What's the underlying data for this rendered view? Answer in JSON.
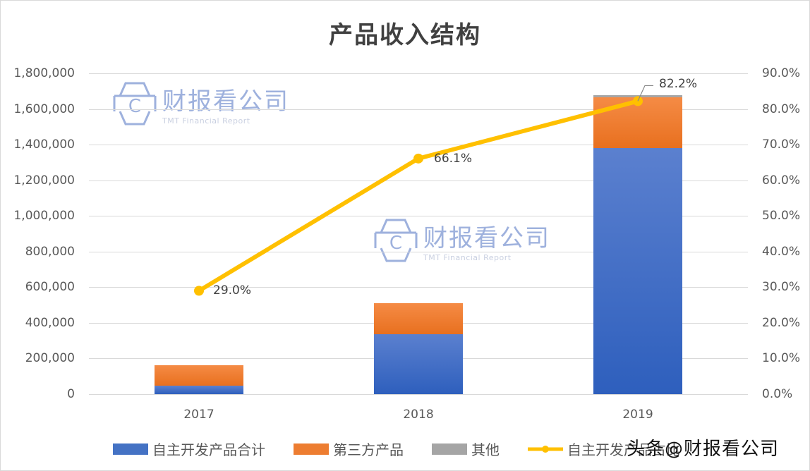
{
  "title": "产品收入结构",
  "watermark": {
    "name": "财报看公司",
    "subtitle": "TMT Financial Report",
    "logo_letter": "C"
  },
  "credit": "头条@财报看公司",
  "left_axis": {
    "ticks": [
      "1,800,000",
      "1,600,000",
      "1,400,000",
      "1,200,000",
      "1,000,000",
      "800,000",
      "600,000",
      "400,000",
      "200,000",
      "0"
    ]
  },
  "right_axis": {
    "ticks": [
      "90.0%",
      "80.0%",
      "70.0%",
      "60.0%",
      "50.0%",
      "40.0%",
      "30.0%",
      "20.0%",
      "10.0%",
      "0.0%"
    ]
  },
  "x_axis": {
    "ticks": [
      "2017",
      "2018",
      "2019"
    ]
  },
  "legend": {
    "items": [
      {
        "label": "自主开发产品合计",
        "color": "#4472c4"
      },
      {
        "label": "第三方产品",
        "color": "#ed7d31"
      },
      {
        "label": "其他",
        "color": "#a5a5a5"
      },
      {
        "label": "自主开发产品占比",
        "color": "#ffc000"
      }
    ]
  },
  "line_labels": [
    "29.0%",
    "66.1%",
    "82.2%"
  ],
  "chart_data": {
    "type": "bar",
    "subtype": "stacked bar + line (secondary axis)",
    "title": "产品收入结构",
    "categories": [
      "2017",
      "2018",
      "2019"
    ],
    "series": [
      {
        "name": "自主开发产品合计",
        "type": "bar",
        "axis": "left",
        "color": "#4472c4",
        "values": [
          47000,
          336000,
          1379000
        ]
      },
      {
        "name": "第三方产品",
        "type": "bar",
        "axis": "left",
        "color": "#ed7d31",
        "values": [
          115000,
          173000,
          287000
        ]
      },
      {
        "name": "其他",
        "type": "bar",
        "axis": "left",
        "color": "#a5a5a5",
        "values": [
          0,
          0,
          12000
        ]
      },
      {
        "name": "自主开发产品占比",
        "type": "line",
        "axis": "right",
        "color": "#ffc000",
        "values": [
          29.0,
          66.1,
          82.2
        ],
        "unit": "%"
      }
    ],
    "ylim_left": [
      0,
      1800000
    ],
    "ylim_right": [
      0,
      90
    ],
    "xlabel": "",
    "ylabel": "",
    "grid": true,
    "legend_position": "bottom"
  }
}
